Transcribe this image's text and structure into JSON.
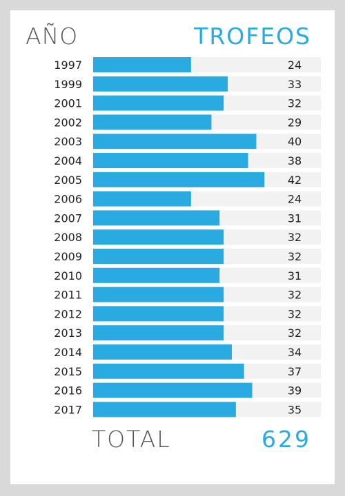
{
  "header": {
    "year_label": "AÑO",
    "trophies_label": "TROFEOS"
  },
  "footer": {
    "total_label": "TOTAL",
    "total_value": "629"
  },
  "colors": {
    "bar": "#29abe2",
    "track": "#f2f2f2",
    "text": "#222222",
    "accent": "#29abe2"
  },
  "chart_data": {
    "type": "bar",
    "orientation": "horizontal",
    "categories": [
      "1997",
      "1999",
      "2001",
      "2002",
      "2003",
      "2004",
      "2005",
      "2006",
      "2007",
      "2008",
      "2009",
      "2010",
      "2011",
      "2012",
      "2013",
      "2014",
      "2015",
      "2016",
      "2017"
    ],
    "values": [
      24,
      33,
      32,
      29,
      40,
      38,
      42,
      24,
      31,
      32,
      32,
      31,
      32,
      32,
      32,
      34,
      37,
      39,
      35
    ],
    "xlim": [
      0,
      56
    ]
  }
}
